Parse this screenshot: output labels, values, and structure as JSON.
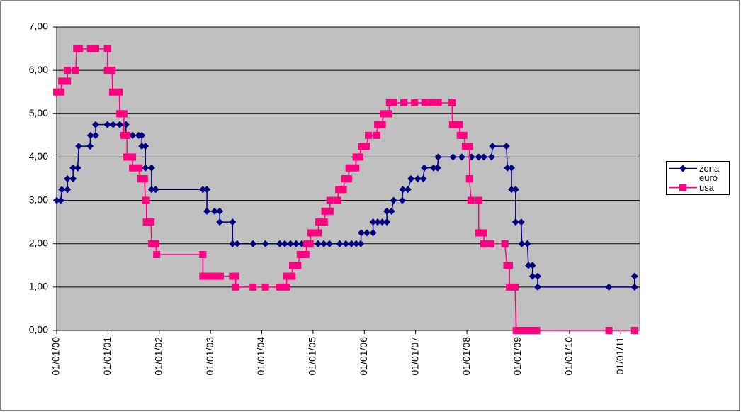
{
  "chart_data": {
    "type": "line",
    "xlim": [
      2000,
      2011.37
    ],
    "xticks": [
      {
        "value": 2000,
        "label": "01/01/00"
      },
      {
        "value": 2001,
        "label": "01/01/01"
      },
      {
        "value": 2002,
        "label": "01/01/02"
      },
      {
        "value": 2003,
        "label": "01/01/03"
      },
      {
        "value": 2004,
        "label": "01/01/04"
      },
      {
        "value": 2005,
        "label": "01/01/05"
      },
      {
        "value": 2006,
        "label": "01/01/06"
      },
      {
        "value": 2007,
        "label": "01/01/07"
      },
      {
        "value": 2008,
        "label": "01/01/08"
      },
      {
        "value": 2009,
        "label": "01/01/09"
      },
      {
        "value": 2010,
        "label": "01/01/10"
      },
      {
        "value": 2011,
        "label": "01/01/11"
      }
    ],
    "ylim": [
      0,
      7
    ],
    "yticks": [
      {
        "value": 0,
        "label": "0,00"
      },
      {
        "value": 1,
        "label": "1,00"
      },
      {
        "value": 2,
        "label": "2,00"
      },
      {
        "value": 3,
        "label": "3,00"
      },
      {
        "value": 4,
        "label": "4,00"
      },
      {
        "value": 5,
        "label": "5,00"
      },
      {
        "value": 6,
        "label": "6,00"
      },
      {
        "value": 7,
        "label": "7,00"
      }
    ],
    "grid": true,
    "legend": "right",
    "series": [
      {
        "name": "zona euro",
        "color": "#000080",
        "marker": "diamond",
        "x": [
          2000,
          2000.08,
          2000.1,
          2000.21,
          2000.21,
          2000.32,
          2000.32,
          2000.41,
          2000.43,
          2000.65,
          2000.66,
          2000.76,
          2000.76,
          2000.99,
          2001.1,
          2001.23,
          2001.35,
          2001.35,
          2001.48,
          2001.6,
          2001.66,
          2001.66,
          2001.73,
          2001.73,
          2001.85,
          2001.85,
          2001.93,
          2002.85,
          2002.93,
          2002.93,
          2003.08,
          2003.18,
          2003.18,
          2003.43,
          2003.43,
          2003.52,
          2003.83,
          2004.07,
          2004.35,
          2004.45,
          2004.56,
          2004.67,
          2004.78,
          2004.9,
          2005.1,
          2005.21,
          2005.32,
          2005.52,
          2005.64,
          2005.75,
          2005.84,
          2005.93,
          2005.94,
          2006.05,
          2006.17,
          2006.17,
          2006.26,
          2006.35,
          2006.44,
          2006.44,
          2006.53,
          2006.57,
          2006.74,
          2006.75,
          2006.85,
          2006.91,
          2007.04,
          2007.15,
          2007.17,
          2007.35,
          2007.43,
          2007.44,
          2007.73,
          2007.9,
          2008.09,
          2008.23,
          2008.33,
          2008.48,
          2008.5,
          2008.77,
          2008.79,
          2008.87,
          2008.87,
          2008.95,
          2008.95,
          2009.06,
          2009.07,
          2009.18,
          2009.2,
          2009.28,
          2009.28,
          2009.38,
          2009.38,
          2010.77,
          2011.27,
          2011.27
        ],
        "values": [
          3,
          3,
          3.25,
          3.25,
          3.5,
          3.5,
          3.75,
          3.75,
          4.25,
          4.25,
          4.5,
          4.5,
          4.75,
          4.75,
          4.75,
          4.75,
          4.75,
          4.5,
          4.5,
          4.5,
          4.5,
          4.25,
          4.25,
          3.75,
          3.75,
          3.25,
          3.25,
          3.25,
          3.25,
          2.75,
          2.75,
          2.75,
          2.5,
          2.5,
          2,
          2,
          2,
          2,
          2,
          2,
          2,
          2,
          2,
          2,
          2,
          2,
          2,
          2,
          2,
          2,
          2,
          2,
          2.25,
          2.25,
          2.25,
          2.5,
          2.5,
          2.5,
          2.5,
          2.75,
          2.75,
          3,
          3,
          3.25,
          3.25,
          3.5,
          3.5,
          3.5,
          3.75,
          3.75,
          3.75,
          4,
          4,
          4,
          4,
          4,
          4,
          4,
          4.25,
          4.25,
          3.75,
          3.75,
          3.25,
          3.25,
          2.5,
          2.5,
          2,
          2,
          1.5,
          1.5,
          1.25,
          1.25,
          1,
          1,
          1,
          1.25
        ]
      },
      {
        "name": "usa",
        "color": "#ff0080",
        "marker": "square",
        "x": [
          2000,
          2000.08,
          2000.1,
          2000.21,
          2000.21,
          2000.37,
          2000.39,
          2000.44,
          2000.66,
          2000.76,
          2000.99,
          2000.99,
          2001.08,
          2001.09,
          2001.22,
          2001.23,
          2001.31,
          2001.31,
          2001.37,
          2001.37,
          2001.48,
          2001.48,
          2001.6,
          2001.63,
          2001.71,
          2001.73,
          2001.75,
          2001.75,
          2001.84,
          2001.85,
          2001.93,
          2001.95,
          2002.85,
          2002.85,
          2002.98,
          2003.08,
          2003.19,
          2003.43,
          2003.49,
          2003.49,
          2003.83,
          2004.07,
          2004.35,
          2004.48,
          2004.49,
          2004.59,
          2004.6,
          2004.7,
          2004.75,
          2004.86,
          2004.88,
          2004.94,
          2004.96,
          2005.1,
          2005.11,
          2005.22,
          2005.23,
          2005.33,
          2005.33,
          2005.48,
          2005.5,
          2005.59,
          2005.62,
          2005.69,
          2005.7,
          2005.83,
          2005.84,
          2005.91,
          2005.94,
          2006.04,
          2006.08,
          2006.24,
          2006.26,
          2006.35,
          2006.37,
          2006.48,
          2006.49,
          2006.57,
          2006.77,
          2006.98,
          2007.18,
          2007.32,
          2007.44,
          2007.71,
          2007.72,
          2007.85,
          2007.87,
          2007.94,
          2007.97,
          2008.05,
          2008.05,
          2008.08,
          2008.23,
          2008.23,
          2008.33,
          2008.33,
          2008.47,
          2008.74,
          2008.78,
          2008.83,
          2008.83,
          2008.94,
          2008.96,
          2009.01,
          2009.12,
          2009.25,
          2009.36,
          2010.77,
          2011.27
        ],
        "values": [
          5.5,
          5.5,
          5.75,
          5.75,
          6,
          6,
          6.5,
          6.5,
          6.5,
          6.5,
          6.5,
          6,
          6,
          5.5,
          5.5,
          5,
          5,
          4.5,
          4.5,
          4,
          4,
          3.75,
          3.75,
          3.5,
          3.5,
          3,
          3,
          2.5,
          2.5,
          2,
          2,
          1.75,
          1.75,
          1.25,
          1.25,
          1.25,
          1.25,
          1.25,
          1.25,
          1,
          1,
          1,
          1,
          1,
          1.25,
          1.25,
          1.5,
          1.5,
          1.75,
          1.75,
          2,
          2,
          2.25,
          2.25,
          2.5,
          2.5,
          2.75,
          2.75,
          3,
          3,
          3.25,
          3.25,
          3.5,
          3.5,
          3.75,
          3.75,
          4,
          4,
          4.25,
          4.25,
          4.5,
          4.5,
          4.75,
          4.75,
          5,
          5,
          5.25,
          5.25,
          5.25,
          5.25,
          5.25,
          5.25,
          5.25,
          5.25,
          4.75,
          4.75,
          4.5,
          4.5,
          4.25,
          4.25,
          3.5,
          3,
          3,
          2.25,
          2.25,
          2,
          2,
          2,
          1.5,
          1.5,
          1,
          1,
          0,
          0,
          0,
          0,
          0,
          0,
          0
        ]
      }
    ]
  }
}
